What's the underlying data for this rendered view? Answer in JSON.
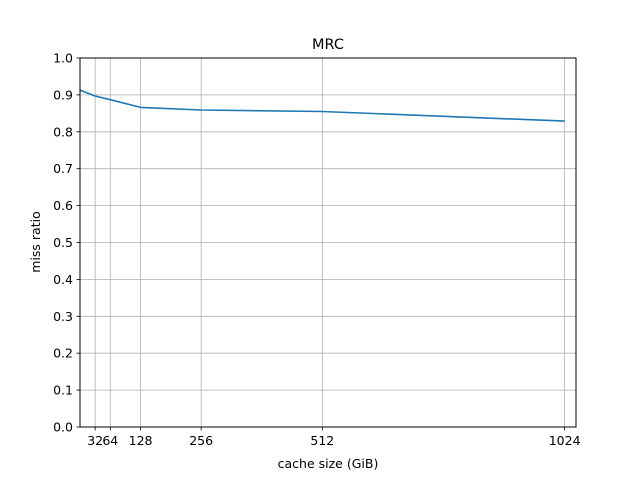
{
  "chart_data": {
    "type": "line",
    "title": "MRC",
    "xlabel": "cache size (GiB)",
    "ylabel": "miss ratio",
    "xlim": [
      0,
      1048
    ],
    "ylim": [
      0.0,
      1.0
    ],
    "xticks": [
      32,
      64,
      128,
      256,
      512,
      1024
    ],
    "xtick_labels": [
      "32",
      "64",
      "128",
      "256",
      "512",
      "1024"
    ],
    "yticks": [
      0.0,
      0.1,
      0.2,
      0.3,
      0.4,
      0.5,
      0.6,
      0.7,
      0.8,
      0.9,
      1.0
    ],
    "ytick_labels": [
      "0.0",
      "0.1",
      "0.2",
      "0.3",
      "0.4",
      "0.5",
      "0.6",
      "0.7",
      "0.8",
      "0.9",
      "1.0"
    ],
    "grid": true,
    "series": [
      {
        "x": [
          0,
          32,
          64,
          128,
          256,
          512,
          1024
        ],
        "y": [
          0.913,
          0.897,
          0.887,
          0.866,
          0.859,
          0.855,
          0.829
        ],
        "color": "#1f77b4"
      }
    ]
  }
}
